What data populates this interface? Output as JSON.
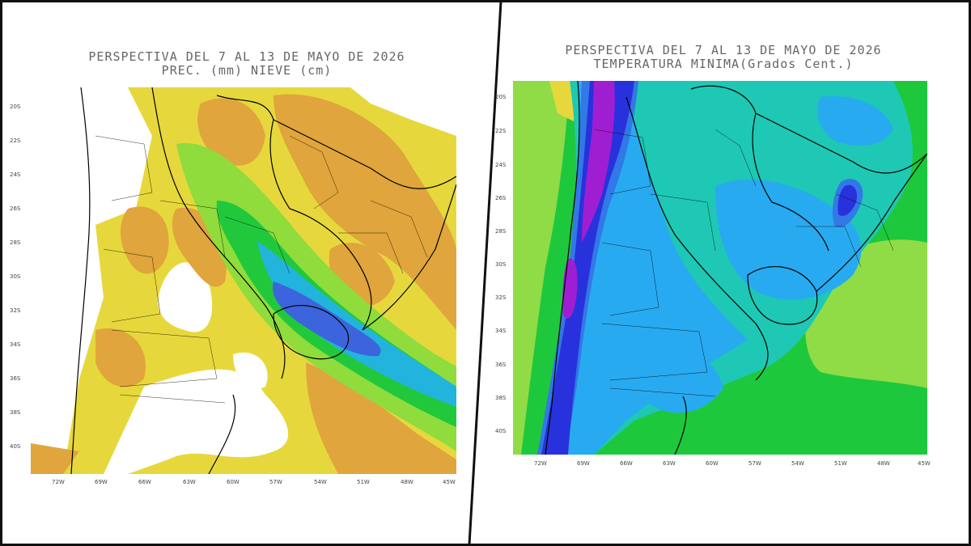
{
  "left_panel": {
    "title_line1": "PERSPECTIVA DEL 7 AL 13 DE MAYO DE 2026",
    "title_line2": "PREC. (mm) NIEVE (cm)",
    "lat_labels": [
      "20S",
      "22S",
      "24S",
      "26S",
      "28S",
      "30S",
      "32S",
      "34S",
      "36S",
      "38S",
      "40S"
    ],
    "lon_labels": [
      "72W",
      "69W",
      "66W",
      "63W",
      "60W",
      "57W",
      "54W",
      "51W",
      "48W",
      "45W"
    ],
    "colors": {
      "white": "#ffffff",
      "yellow": "#e6d83c",
      "orange": "#e0a53c",
      "lightgreen": "#8fdc3c",
      "green": "#22c83c",
      "cyan": "#22b4dc",
      "blue": "#3c64dc"
    }
  },
  "right_panel": {
    "title_line1": "PERSPECTIVA DEL 7 AL 13 DE MAYO DE 2026",
    "title_line2": "TEMPERATURA MINIMA(Grados Cent.)",
    "lat_labels": [
      "20S",
      "22S",
      "24S",
      "26S",
      "28S",
      "30S",
      "32S",
      "34S",
      "36S",
      "38S",
      "40S"
    ],
    "lon_labels": [
      "72W",
      "69W",
      "66W",
      "63W",
      "60W",
      "57W",
      "54W",
      "51W",
      "48W",
      "45W"
    ],
    "colors": {
      "lightgreen": "#8fdc46",
      "green": "#1ec83c",
      "teal": "#1ec8b4",
      "cyan": "#28aaf0",
      "blue": "#3278e6",
      "darkblue": "#2832dc",
      "purple": "#a01ed2"
    }
  }
}
